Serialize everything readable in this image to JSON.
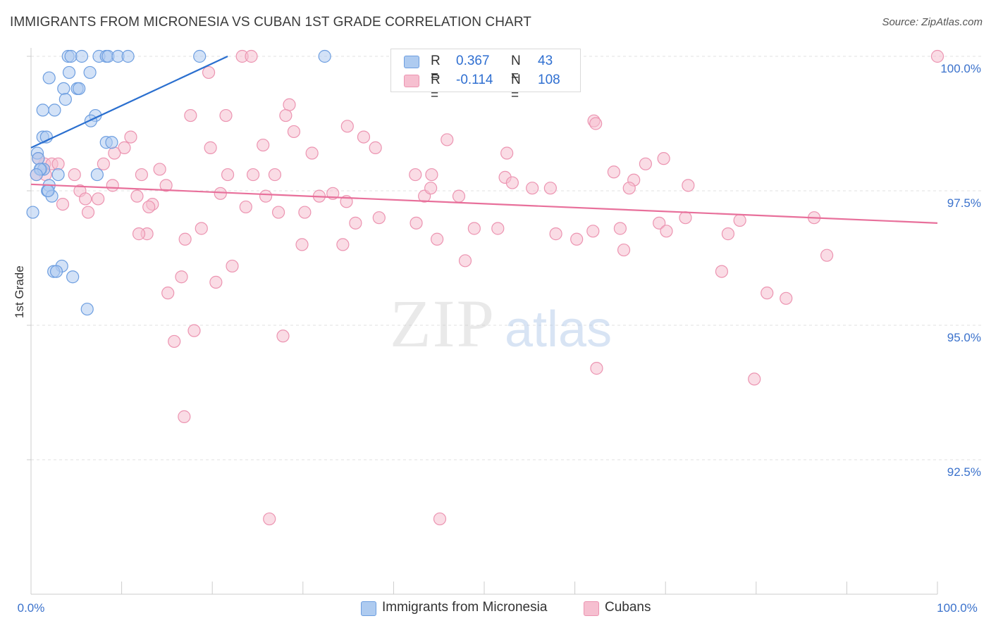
{
  "header": {
    "title": "IMMIGRANTS FROM MICRONESIA VS CUBAN 1ST GRADE CORRELATION CHART",
    "source": "Source: ZipAtlas.com"
  },
  "stats": {
    "rows": [
      {
        "r_label": "R =",
        "r_value": "0.367",
        "n_label": "N =",
        "n_value": "43"
      },
      {
        "r_label": "R =",
        "r_value": "-0.114",
        "n_label": "N =",
        "n_value": "108"
      }
    ]
  },
  "legend": {
    "items": [
      {
        "label": "Immigrants from Micronesia"
      },
      {
        "label": "Cubans"
      }
    ]
  },
  "watermark": {
    "zip": "ZIP",
    "atlas": "atlas"
  },
  "colors": {
    "blue_fill": "#aecbf0",
    "blue_stroke": "#6d9ee0",
    "blue_line": "#2a6fcf",
    "pink_fill": "#f6bfd0",
    "pink_stroke": "#ec94b1",
    "pink_line": "#e8709b",
    "tick_text": "#3b72cc",
    "grid": "#e0e0e0"
  },
  "chart_data": {
    "type": "scatter",
    "title": "IMMIGRANTS FROM MICRONESIA VS CUBAN 1ST GRADE CORRELATION CHART",
    "xlabel": "",
    "ylabel": "1st Grade",
    "xlim": [
      0,
      100
    ],
    "ylim": [
      90.0,
      100.2
    ],
    "x_tick_labels": [
      "0.0%",
      "100.0%"
    ],
    "y_ticks": [
      92.5,
      95.0,
      97.5,
      100.0
    ],
    "y_tick_labels": [
      "92.5%",
      "95.0%",
      "97.5%",
      "100.0%"
    ],
    "grid": true,
    "series": [
      {
        "name": "Immigrants from Micronesia",
        "color": "#6d9ee0",
        "trend": {
          "x": [
            0,
            21.7
          ],
          "y": [
            98.3,
            100.0
          ]
        },
        "points": [
          [
            4.1,
            100.0
          ],
          [
            4.4,
            100.0
          ],
          [
            5.6,
            100.0
          ],
          [
            7.5,
            100.0
          ],
          [
            8.3,
            100.0
          ],
          [
            8.5,
            100.0
          ],
          [
            9.6,
            100.0
          ],
          [
            10.7,
            100.0
          ],
          [
            18.6,
            100.0
          ],
          [
            32.4,
            100.0
          ],
          [
            4.2,
            99.7
          ],
          [
            6.5,
            99.7
          ],
          [
            2.0,
            99.6
          ],
          [
            3.6,
            99.4
          ],
          [
            5.1,
            99.4
          ],
          [
            5.3,
            99.4
          ],
          [
            3.8,
            99.2
          ],
          [
            1.3,
            99.0
          ],
          [
            2.6,
            99.0
          ],
          [
            7.1,
            98.9
          ],
          [
            6.6,
            98.8
          ],
          [
            1.3,
            98.5
          ],
          [
            1.7,
            98.5
          ],
          [
            8.3,
            98.4
          ],
          [
            8.9,
            98.4
          ],
          [
            0.7,
            98.2
          ],
          [
            0.8,
            98.1
          ],
          [
            1.1,
            97.9
          ],
          [
            1.4,
            97.9
          ],
          [
            7.3,
            97.8
          ],
          [
            3.0,
            97.8
          ],
          [
            2.0,
            97.6
          ],
          [
            1.8,
            97.5
          ],
          [
            2.3,
            97.4
          ],
          [
            0.2,
            97.1
          ],
          [
            3.4,
            96.1
          ],
          [
            2.5,
            96.0
          ],
          [
            2.8,
            96.0
          ],
          [
            4.6,
            95.9
          ],
          [
            6.2,
            95.3
          ],
          [
            1.0,
            97.9
          ],
          [
            0.6,
            97.8
          ],
          [
            1.9,
            97.5
          ]
        ]
      },
      {
        "name": "Cubans",
        "color": "#ec94b1",
        "trend": {
          "x": [
            0,
            100
          ],
          "y": [
            97.62,
            96.9
          ]
        },
        "points": [
          [
            23.3,
            100.0
          ],
          [
            24.3,
            100.0
          ],
          [
            100.0,
            100.0
          ],
          [
            19.6,
            99.7
          ],
          [
            28.5,
            99.1
          ],
          [
            17.6,
            98.9
          ],
          [
            21.5,
            98.9
          ],
          [
            28.1,
            98.9
          ],
          [
            62.1,
            98.8
          ],
          [
            62.3,
            98.75
          ],
          [
            34.9,
            98.7
          ],
          [
            29.0,
            98.6
          ],
          [
            11.0,
            98.5
          ],
          [
            36.7,
            98.5
          ],
          [
            45.9,
            98.45
          ],
          [
            25.6,
            98.35
          ],
          [
            38.0,
            98.3
          ],
          [
            19.8,
            98.3
          ],
          [
            31.0,
            98.2
          ],
          [
            52.5,
            98.2
          ],
          [
            69.8,
            98.1
          ],
          [
            67.8,
            98.0
          ],
          [
            10.3,
            98.3
          ],
          [
            9.2,
            98.2
          ],
          [
            1.5,
            98.0
          ],
          [
            2.3,
            98.0
          ],
          [
            1.6,
            97.8
          ],
          [
            0.6,
            97.8
          ],
          [
            0.8,
            98.1
          ],
          [
            3.0,
            98.0
          ],
          [
            4.8,
            97.8
          ],
          [
            8.0,
            98.0
          ],
          [
            14.2,
            97.9
          ],
          [
            12.2,
            97.8
          ],
          [
            21.7,
            97.8
          ],
          [
            24.5,
            97.8
          ],
          [
            26.9,
            97.8
          ],
          [
            42.4,
            97.8
          ],
          [
            44.2,
            97.8
          ],
          [
            52.3,
            97.75
          ],
          [
            53.1,
            97.65
          ],
          [
            64.3,
            97.85
          ],
          [
            66.5,
            97.7
          ],
          [
            9.0,
            97.6
          ],
          [
            14.9,
            97.6
          ],
          [
            5.4,
            97.5
          ],
          [
            6.0,
            97.35
          ],
          [
            7.4,
            97.35
          ],
          [
            11.7,
            97.4
          ],
          [
            13.4,
            97.25
          ],
          [
            13.0,
            97.2
          ],
          [
            20.9,
            97.45
          ],
          [
            25.9,
            97.4
          ],
          [
            31.8,
            97.4
          ],
          [
            33.3,
            97.45
          ],
          [
            34.8,
            97.3
          ],
          [
            43.4,
            97.4
          ],
          [
            44.1,
            97.55
          ],
          [
            47.2,
            97.4
          ],
          [
            55.3,
            97.55
          ],
          [
            57.3,
            97.55
          ],
          [
            66.0,
            97.55
          ],
          [
            72.5,
            97.6
          ],
          [
            3.5,
            97.25
          ],
          [
            6.3,
            97.1
          ],
          [
            23.7,
            97.2
          ],
          [
            27.3,
            97.1
          ],
          [
            30.2,
            97.1
          ],
          [
            38.4,
            97.0
          ],
          [
            42.5,
            96.9
          ],
          [
            48.9,
            96.8
          ],
          [
            51.5,
            96.8
          ],
          [
            69.3,
            96.9
          ],
          [
            72.2,
            97.0
          ],
          [
            78.2,
            96.95
          ],
          [
            86.4,
            97.0
          ],
          [
            12.8,
            96.7
          ],
          [
            11.9,
            96.7
          ],
          [
            18.8,
            96.8
          ],
          [
            17.0,
            96.6
          ],
          [
            29.9,
            96.5
          ],
          [
            34.4,
            96.5
          ],
          [
            57.9,
            96.7
          ],
          [
            60.2,
            96.6
          ],
          [
            65.4,
            96.4
          ],
          [
            76.9,
            96.7
          ],
          [
            47.9,
            96.2
          ],
          [
            16.6,
            95.9
          ],
          [
            20.4,
            95.8
          ],
          [
            22.2,
            96.1
          ],
          [
            65.0,
            96.8
          ],
          [
            76.2,
            96.0
          ],
          [
            87.8,
            96.3
          ],
          [
            15.1,
            95.6
          ],
          [
            81.2,
            95.6
          ],
          [
            83.3,
            95.5
          ],
          [
            18.0,
            94.9
          ],
          [
            27.8,
            94.8
          ],
          [
            15.8,
            94.7
          ],
          [
            62.4,
            94.2
          ],
          [
            79.8,
            94.0
          ],
          [
            16.9,
            93.3
          ],
          [
            26.3,
            91.4
          ],
          [
            45.1,
            91.4
          ],
          [
            70.1,
            96.75
          ],
          [
            62.0,
            96.75
          ],
          [
            35.8,
            96.9
          ],
          [
            44.8,
            96.6
          ]
        ]
      }
    ]
  }
}
